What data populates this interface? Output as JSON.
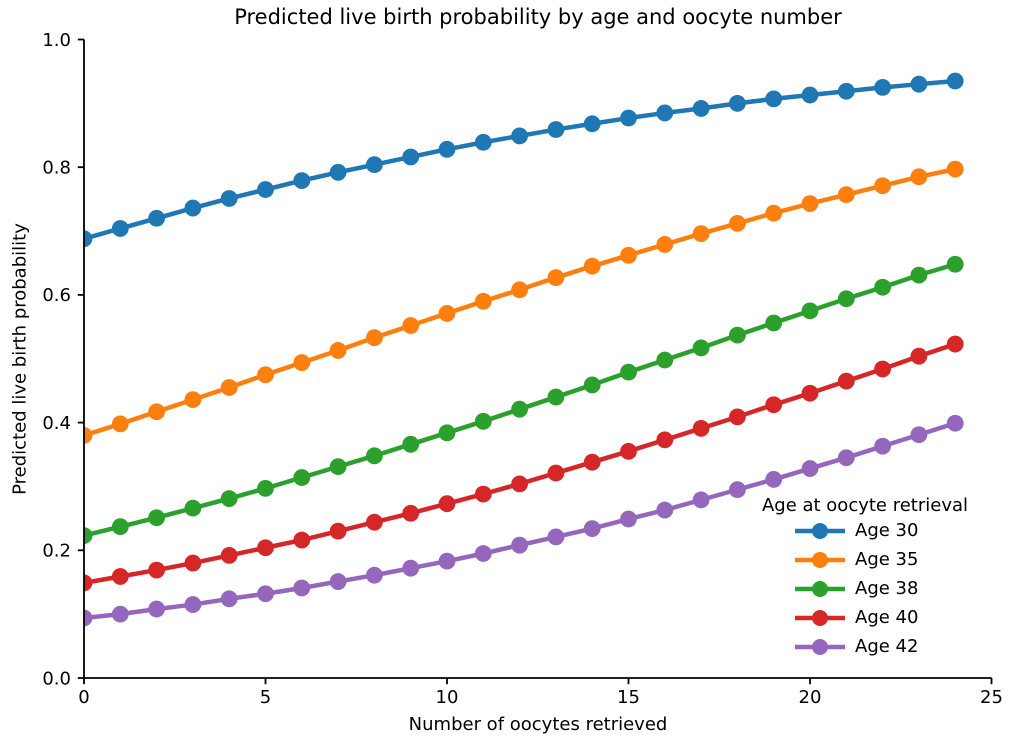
{
  "chart_data": {
    "type": "line",
    "title": "Predicted live birth probability by age and oocyte number",
    "xlabel": "Number of oocytes retrieved",
    "ylabel": "Predicted live birth probability",
    "xlim": [
      0,
      25
    ],
    "ylim": [
      0.0,
      1.0
    ],
    "grid": false,
    "x_ticks": [
      0,
      5,
      10,
      15,
      20,
      25
    ],
    "x_tick_labels": [
      "0",
      "5",
      "10",
      "15",
      "20",
      "25"
    ],
    "y_ticks": [
      0.0,
      0.2,
      0.4,
      0.6,
      0.8,
      1.0
    ],
    "y_tick_labels": [
      "0.0",
      "0.2",
      "0.4",
      "0.6",
      "0.8",
      "1.0"
    ],
    "legend_title": "Age at oocyte retrieval",
    "legend_position": "lower right",
    "marker": "o",
    "x": [
      0,
      1,
      2,
      3,
      4,
      5,
      6,
      7,
      8,
      9,
      10,
      11,
      12,
      13,
      14,
      15,
      16,
      17,
      18,
      19,
      20,
      21,
      22,
      23,
      24
    ],
    "series": [
      {
        "name": "Age 30",
        "color": "#1f77b4",
        "values": [
          0.688,
          0.704,
          0.72,
          0.736,
          0.751,
          0.765,
          0.779,
          0.792,
          0.804,
          0.816,
          0.828,
          0.839,
          0.849,
          0.859,
          0.868,
          0.877,
          0.885,
          0.892,
          0.9,
          0.907,
          0.913,
          0.919,
          0.925,
          0.93,
          0.935
        ]
      },
      {
        "name": "Age 35",
        "color": "#ff7f0e",
        "values": [
          0.38,
          0.398,
          0.417,
          0.436,
          0.455,
          0.475,
          0.494,
          0.513,
          0.533,
          0.552,
          0.571,
          0.59,
          0.608,
          0.627,
          0.645,
          0.662,
          0.679,
          0.696,
          0.712,
          0.728,
          0.743,
          0.757,
          0.771,
          0.785,
          0.797
        ]
      },
      {
        "name": "Age 38",
        "color": "#2ca02c",
        "values": [
          0.223,
          0.237,
          0.251,
          0.266,
          0.281,
          0.297,
          0.314,
          0.331,
          0.348,
          0.366,
          0.384,
          0.402,
          0.421,
          0.44,
          0.459,
          0.479,
          0.498,
          0.517,
          0.537,
          0.556,
          0.575,
          0.594,
          0.612,
          0.631,
          0.648
        ]
      },
      {
        "name": "Age 40",
        "color": "#d62728",
        "values": [
          0.149,
          0.159,
          0.169,
          0.18,
          0.192,
          0.204,
          0.216,
          0.23,
          0.244,
          0.258,
          0.273,
          0.288,
          0.304,
          0.321,
          0.338,
          0.355,
          0.373,
          0.391,
          0.409,
          0.428,
          0.446,
          0.465,
          0.484,
          0.504,
          0.523
        ]
      },
      {
        "name": "Age 42",
        "color": "#9467bd",
        "values": [
          0.094,
          0.1,
          0.108,
          0.115,
          0.124,
          0.132,
          0.141,
          0.151,
          0.161,
          0.172,
          0.183,
          0.195,
          0.208,
          0.221,
          0.234,
          0.249,
          0.263,
          0.279,
          0.295,
          0.311,
          0.328,
          0.345,
          0.363,
          0.381,
          0.399
        ]
      }
    ]
  }
}
